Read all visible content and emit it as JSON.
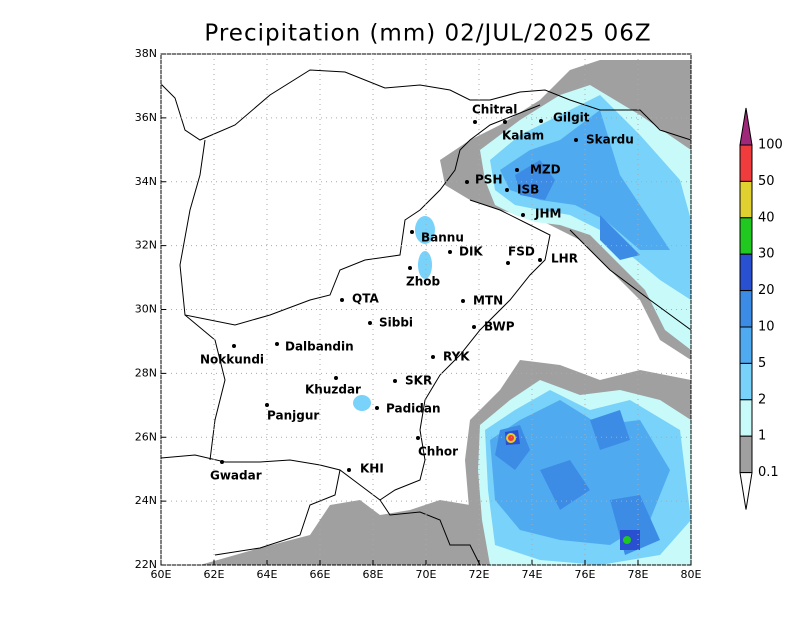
{
  "title": "Precipitation (mm) 02/JUL/2025 06Z",
  "map": {
    "xlim": [
      60,
      80
    ],
    "ylim": [
      22,
      38
    ],
    "xticks": [
      {
        "value": 60,
        "label": "60E"
      },
      {
        "value": 62,
        "label": "62E"
      },
      {
        "value": 64,
        "label": "64E"
      },
      {
        "value": 66,
        "label": "66E"
      },
      {
        "value": 68,
        "label": "68E"
      },
      {
        "value": 70,
        "label": "70E"
      },
      {
        "value": 72,
        "label": "72E"
      },
      {
        "value": 74,
        "label": "74E"
      },
      {
        "value": 76,
        "label": "76E"
      },
      {
        "value": 78,
        "label": "78E"
      },
      {
        "value": 80,
        "label": "80E"
      }
    ],
    "yticks": [
      {
        "value": 22,
        "label": "22N"
      },
      {
        "value": 24,
        "label": "24N"
      },
      {
        "value": 26,
        "label": "26N"
      },
      {
        "value": 28,
        "label": "28N"
      },
      {
        "value": 30,
        "label": "30N"
      },
      {
        "value": 32,
        "label": "32N"
      },
      {
        "value": 34,
        "label": "34N"
      },
      {
        "value": 36,
        "label": "36N"
      },
      {
        "value": 38,
        "label": "38N"
      }
    ],
    "grid": true,
    "cities": [
      "Chitral",
      "Gilgit",
      "Kalam",
      "Skardu",
      "MZD",
      "PSH",
      "ISB",
      "JHM",
      "Bannu",
      "DIK",
      "FSD",
      "LHR",
      "Zhob",
      "QTA",
      "MTN",
      "Sibbi",
      "BWP",
      "Dalbandin",
      "Nokkundi",
      "RYK",
      "Khuzdar",
      "SKR",
      "Padidan",
      "Panjgur",
      "Chhor",
      "KHI",
      "Gwadar"
    ]
  },
  "legend": {
    "levels": [
      100,
      50,
      40,
      30,
      20,
      10,
      5,
      2,
      1,
      0.1
    ],
    "colors": [
      "#a0287a",
      "#f03c3c",
      "#e0d030",
      "#20c820",
      "#2850d0",
      "#3c8ce6",
      "#50aaf0",
      "#78d2fa",
      "#c8fafa",
      "#a0a0a0",
      "#ffffff"
    ]
  }
}
